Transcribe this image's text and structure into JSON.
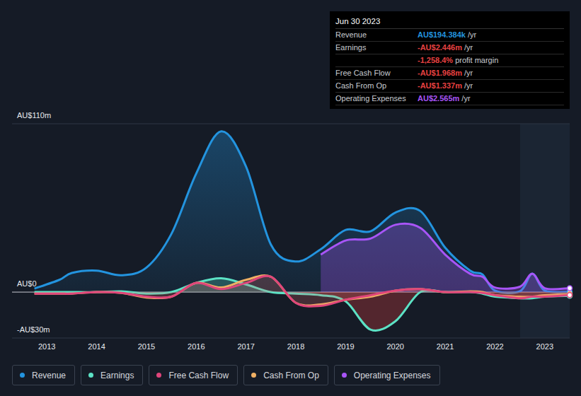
{
  "chart_data": {
    "type": "line",
    "x": [
      2012.75,
      2013.25,
      2013.5,
      2014,
      2014.5,
      2015,
      2015.5,
      2016,
      2016.5,
      2017,
      2017.5,
      2018,
      2018.5,
      2019,
      2019.5,
      2020,
      2020.5,
      2021,
      2021.5,
      2021.75,
      2022,
      2022.5,
      2022.75,
      2023,
      2023.5
    ],
    "xlim": [
      2012.3,
      2023.5
    ],
    "xticks": [
      2013,
      2014,
      2015,
      2016,
      2017,
      2018,
      2019,
      2020,
      2021,
      2022,
      2023
    ],
    "ylim": [
      -30,
      110
    ],
    "yticks": [
      {
        "value": 110,
        "label": "AU$110m"
      },
      {
        "value": 0,
        "label": "AU$0"
      },
      {
        "value": -30,
        "label": "-AU$30m"
      }
    ],
    "grid": true,
    "legend": "bottom",
    "series": [
      {
        "name": "Revenue",
        "color": "#2394df",
        "values": [
          2.3,
          8,
          12.5,
          14,
          11,
          16,
          38,
          77.5,
          105,
          82,
          31,
          20,
          28,
          40.6,
          39.7,
          52,
          53,
          29,
          14,
          11.5,
          1,
          0.5,
          12,
          1,
          0.194
        ]
      },
      {
        "name": "Earnings",
        "color": "#5ce2c5",
        "values": [
          0,
          0,
          0,
          0,
          0.5,
          -1,
          0,
          6,
          9,
          5,
          0,
          -1,
          -2,
          -6,
          -24.5,
          -19,
          0,
          0,
          0,
          -1,
          -3,
          -4,
          -4,
          -3,
          -2.446
        ]
      },
      {
        "name": "Free Cash Flow",
        "color": "#e0457b",
        "values": [
          -1,
          -1,
          -1,
          0,
          -0.5,
          -3,
          -3,
          6,
          2,
          6,
          10,
          -7,
          -9,
          -5,
          -2,
          1,
          2,
          0,
          0,
          -0.5,
          -2,
          -4,
          -3,
          -3,
          -1.968
        ]
      },
      {
        "name": "Cash From Op",
        "color": "#f0b064",
        "values": [
          -1,
          -1,
          -1,
          0,
          -0.5,
          -3.5,
          -3,
          6,
          3,
          8,
          10,
          -7,
          -8,
          -5,
          -3,
          1,
          2,
          0,
          0.5,
          0,
          -2,
          -3,
          -3,
          -2,
          -1.337
        ]
      },
      {
        "name": "Operating Expenses",
        "color": "#a855f7",
        "values": [
          null,
          null,
          null,
          null,
          null,
          null,
          null,
          null,
          null,
          null,
          null,
          null,
          24.5,
          33.7,
          35,
          44,
          42,
          24.5,
          12,
          10,
          3,
          3.5,
          12,
          2.5,
          2.565
        ]
      }
    ],
    "tooltip": {
      "date": "Jun 30 2023",
      "rows": [
        {
          "label": "Revenue",
          "value": "AU$194.384k",
          "unit": "/yr",
          "color": "#2394df"
        },
        {
          "label": "Earnings",
          "value": "-AU$2.446m",
          "unit": "/yr",
          "color": "#e64141"
        },
        {
          "label": "",
          "value": "-1,258.4%",
          "unit": "profit margin",
          "color": "#e64141"
        },
        {
          "label": "Free Cash Flow",
          "value": "-AU$1.968m",
          "unit": "/yr",
          "color": "#e64141"
        },
        {
          "label": "Cash From Op",
          "value": "-AU$1.337m",
          "unit": "/yr",
          "color": "#e64141"
        },
        {
          "label": "Operating Expenses",
          "value": "AU$2.565m",
          "unit": "/yr",
          "color": "#a855f7"
        }
      ]
    }
  }
}
